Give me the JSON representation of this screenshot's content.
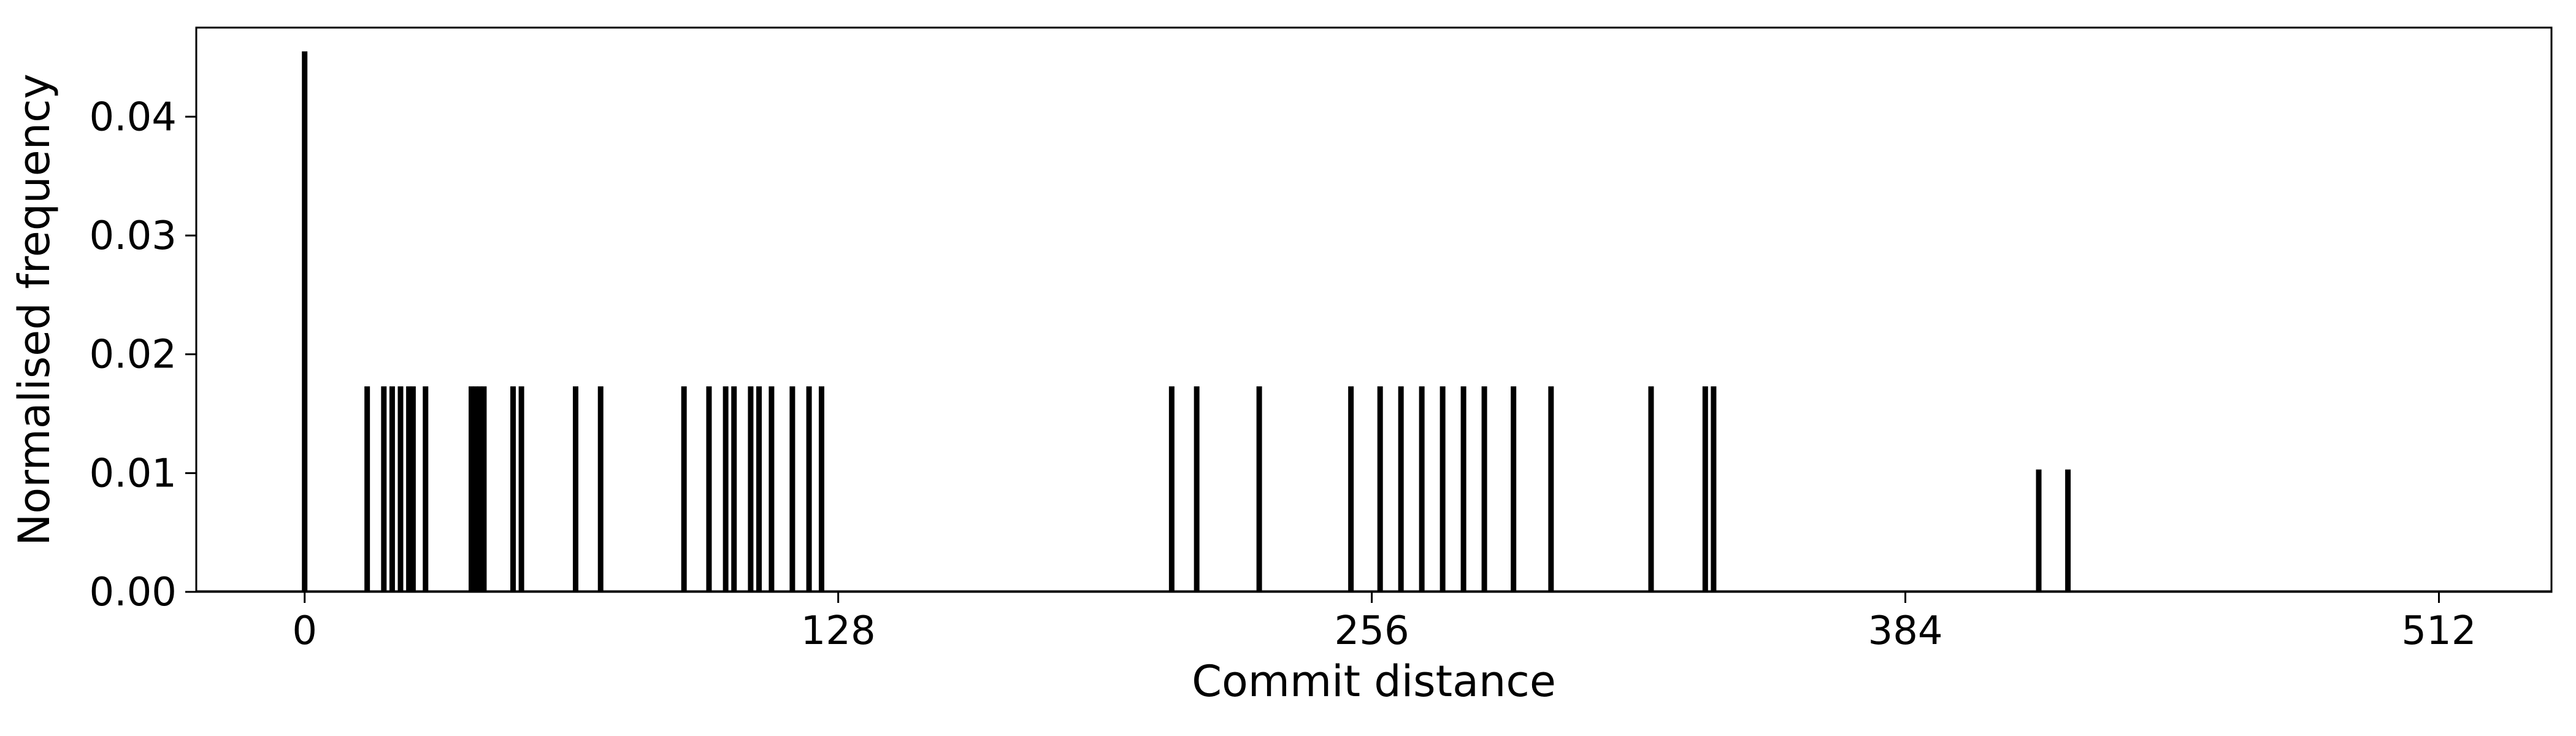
{
  "chart_data": {
    "type": "bar",
    "title": "",
    "xlabel": "Commit distance",
    "ylabel": "Normalised frequency",
    "xlim": [
      -26,
      539
    ],
    "ylim": [
      0,
      0.0475
    ],
    "x_ticks": [
      0,
      128,
      256,
      384,
      512
    ],
    "x_tick_labels": [
      "0",
      "128",
      "256",
      "384",
      "512"
    ],
    "y_ticks": [
      0,
      0.01,
      0.02,
      0.03,
      0.04
    ],
    "y_tick_labels": [
      "0.00",
      "0.01",
      "0.02",
      "0.03",
      "0.04"
    ],
    "grid": false,
    "legend": "none",
    "bar_color": "#000000",
    "x": [
      0,
      15,
      19,
      21,
      23,
      25,
      26,
      29,
      40,
      41,
      42,
      43,
      50,
      52,
      65,
      71,
      91,
      97,
      101,
      103,
      107,
      109,
      112,
      117,
      121,
      124,
      208,
      214,
      229,
      251,
      258,
      263,
      268,
      273,
      278,
      283,
      290,
      299,
      323,
      336,
      338,
      416,
      423
    ],
    "values": [
      0.0455,
      0.0173,
      0.0173,
      0.0173,
      0.0173,
      0.0173,
      0.0173,
      0.0173,
      0.0173,
      0.0173,
      0.0173,
      0.0173,
      0.0173,
      0.0173,
      0.0173,
      0.0173,
      0.0173,
      0.0173,
      0.0173,
      0.0173,
      0.0173,
      0.0173,
      0.0173,
      0.0173,
      0.0173,
      0.0173,
      0.0173,
      0.0173,
      0.0173,
      0.0173,
      0.0173,
      0.0173,
      0.0173,
      0.0173,
      0.0173,
      0.0173,
      0.0173,
      0.0173,
      0.0173,
      0.0173,
      0.0173,
      0.0103,
      0.0103
    ]
  }
}
